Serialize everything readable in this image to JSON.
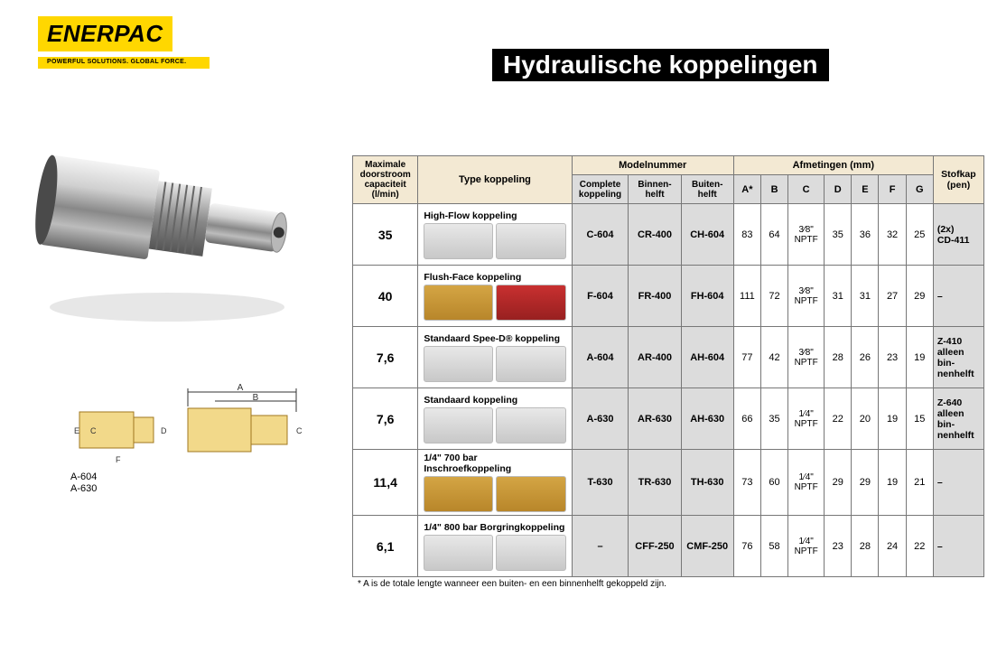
{
  "brand": {
    "name": "ENERPAC",
    "tagline": "POWERFUL SOLUTIONS. GLOBAL FORCE."
  },
  "title": "Hydraulische koppelingen",
  "diagram_labels": {
    "line1": "A-604",
    "line2": "A-630"
  },
  "table": {
    "headers": {
      "h_capacity": "Maximale doorstroom capaciteit (l/min)",
      "h_type": "Type koppeling",
      "h_model": "Modelnummer",
      "h_dim": "Afmetingen (mm)",
      "h_stof": "Stofkap (pen)",
      "sub_complete": "Complete koppeling",
      "sub_inner": "Binnen-helft",
      "sub_outer": "Buiten-helft",
      "A": "A*",
      "B": "B",
      "C": "C",
      "D": "D",
      "E": "E",
      "F": "F",
      "G": "G"
    },
    "rows": [
      {
        "cap": "35",
        "type": "High-Flow koppeling",
        "mn": [
          "C-604",
          "CR-400",
          "CH-604"
        ],
        "A": "83",
        "B": "64",
        "C": "3⁄8\"\nNPTF",
        "D": "35",
        "E": "36",
        "F": "32",
        "G": "25",
        "stof": "(2x)\nCD-411"
      },
      {
        "cap": "40",
        "type": "Flush-Face koppeling",
        "mn": [
          "F-604",
          "FR-400",
          "FH-604"
        ],
        "A": "111",
        "B": "72",
        "C": "3⁄8\"\nNPTF",
        "D": "31",
        "E": "31",
        "F": "27",
        "G": "29",
        "stof": "–"
      },
      {
        "cap": "7,6",
        "type": "Standaard Spee-D® koppeling",
        "mn": [
          "A-604",
          "AR-400",
          "AH-604"
        ],
        "A": "77",
        "B": "42",
        "C": "3⁄8\"\nNPTF",
        "D": "28",
        "E": "26",
        "F": "23",
        "G": "19",
        "stof": "Z-410\nalleen bin-nenhelft"
      },
      {
        "cap": "7,6",
        "type": "Standaard koppeling",
        "mn": [
          "A-630",
          "AR-630",
          "AH-630"
        ],
        "A": "66",
        "B": "35",
        "C": "1⁄4\"\nNPTF",
        "D": "22",
        "E": "20",
        "F": "19",
        "G": "15",
        "stof": "Z-640\nalleen bin-nenhelft"
      },
      {
        "cap": "11,4",
        "type": "1/4\" 700 bar Inschroefkoppeling",
        "mn": [
          "T-630",
          "TR-630",
          "TH-630"
        ],
        "A": "73",
        "B": "60",
        "C": "1⁄4\"\nNPTF",
        "D": "29",
        "E": "29",
        "F": "19",
        "G": "21",
        "stof": "–"
      },
      {
        "cap": "6,1",
        "type": "1/4\" 800 bar Borgringkoppeling",
        "mn": [
          "–",
          "CFF-250",
          "CMF-250"
        ],
        "A": "76",
        "B": "58",
        "C": "1⁄4\"\nNPTF",
        "D": "23",
        "E": "28",
        "F": "24",
        "G": "22",
        "stof": "–"
      }
    ],
    "footnote": "* A is de totale lengte wanneer een buiten- en een binnenhelft gekoppeld zijn."
  },
  "colors": {
    "header_bg": "#f3e9d3",
    "sub_bg": "#dcdcdc",
    "border": "#777777",
    "logo_bg": "#ffd700",
    "title_bg": "#000000",
    "title_fg": "#ffffff"
  }
}
